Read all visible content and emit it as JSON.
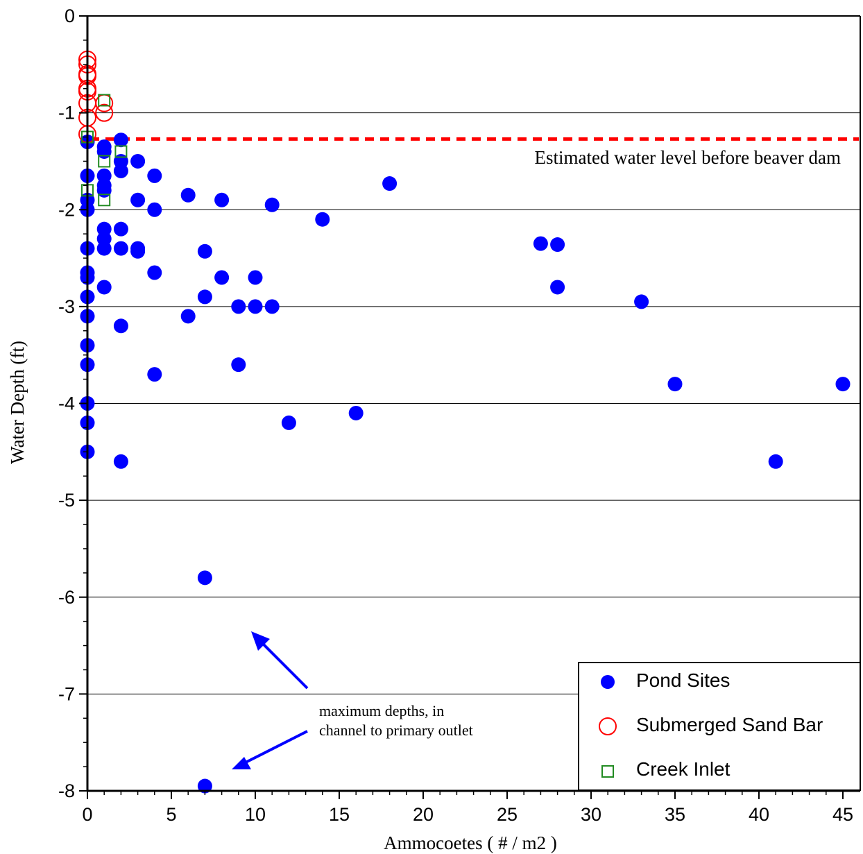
{
  "chart_data": {
    "type": "scatter",
    "xlabel": "Ammocoetes ( # / m2 )",
    "ylabel": "Water Depth (ft)",
    "xlim": [
      0,
      46
    ],
    "ylim": [
      -8,
      0
    ],
    "x_ticks": [
      "0",
      "5",
      "10",
      "15",
      "20",
      "25",
      "30",
      "35",
      "40",
      "45"
    ],
    "y_ticks": [
      "0",
      "-1",
      "-2",
      "-3",
      "-4",
      "-5",
      "-6",
      "-7",
      "-8"
    ],
    "grid": "horizontal",
    "legend_position": "bottom-right",
    "reference_line": {
      "y": -1.27,
      "label": "Estimated water level before beaver dam",
      "color": "#ff0000"
    },
    "annotation": {
      "line1": "maximum depths, in",
      "line2": "channel to primary outlet"
    },
    "series": [
      {
        "name": "Pond Sites",
        "marker": "filled-circle",
        "color": "#0000ff",
        "points": [
          [
            0,
            -1.3
          ],
          [
            0,
            -1.65
          ],
          [
            0,
            -1.9
          ],
          [
            0,
            -2.0
          ],
          [
            0,
            -2.4
          ],
          [
            0,
            -2.65
          ],
          [
            0,
            -2.7
          ],
          [
            0,
            -2.9
          ],
          [
            0,
            -3.1
          ],
          [
            0,
            -3.4
          ],
          [
            0,
            -3.6
          ],
          [
            0,
            -4.0
          ],
          [
            0,
            -4.2
          ],
          [
            0,
            -4.5
          ],
          [
            1,
            -1.35
          ],
          [
            1,
            -1.4
          ],
          [
            1,
            -1.65
          ],
          [
            1,
            -1.75
          ],
          [
            1,
            -1.8
          ],
          [
            1,
            -2.2
          ],
          [
            1,
            -2.3
          ],
          [
            1,
            -2.4
          ],
          [
            1,
            -2.8
          ],
          [
            2,
            -1.28
          ],
          [
            2,
            -1.5
          ],
          [
            2,
            -1.6
          ],
          [
            2,
            -2.2
          ],
          [
            2,
            -2.4
          ],
          [
            2,
            -3.2
          ],
          [
            2,
            -4.6
          ],
          [
            3,
            -1.5
          ],
          [
            3,
            -1.9
          ],
          [
            3,
            -2.4
          ],
          [
            3,
            -2.43
          ],
          [
            4,
            -1.65
          ],
          [
            4,
            -2.0
          ],
          [
            4,
            -2.65
          ],
          [
            4,
            -3.7
          ],
          [
            6,
            -1.85
          ],
          [
            6,
            -3.1
          ],
          [
            7,
            -2.43
          ],
          [
            7,
            -2.9
          ],
          [
            7,
            -5.8
          ],
          [
            7,
            -7.95
          ],
          [
            8,
            -1.9
          ],
          [
            8,
            -2.7
          ],
          [
            9,
            -3.0
          ],
          [
            9,
            -3.6
          ],
          [
            10,
            -2.7
          ],
          [
            10,
            -3.0
          ],
          [
            11,
            -1.95
          ],
          [
            11,
            -3.0
          ],
          [
            12,
            -4.2
          ],
          [
            14,
            -2.1
          ],
          [
            16,
            -4.1
          ],
          [
            18,
            -1.73
          ],
          [
            27,
            -2.35
          ],
          [
            28,
            -2.36
          ],
          [
            28,
            -2.8
          ],
          [
            33,
            -2.95
          ],
          [
            35,
            -3.8
          ],
          [
            41,
            -4.6
          ],
          [
            45,
            -3.8
          ]
        ]
      },
      {
        "name": "Submerged Sand Bar",
        "marker": "open-circle",
        "color": "#ff0000",
        "points": [
          [
            0,
            -0.45
          ],
          [
            0,
            -0.5
          ],
          [
            0,
            -0.6
          ],
          [
            0,
            -0.62
          ],
          [
            0,
            -0.75
          ],
          [
            0,
            -0.78
          ],
          [
            0,
            -0.9
          ],
          [
            0,
            -1.05
          ],
          [
            0,
            -1.22
          ],
          [
            1,
            -0.9
          ],
          [
            1,
            -1.0
          ]
        ]
      },
      {
        "name": "Creek Inlet",
        "marker": "open-square",
        "color": "#228b22",
        "points": [
          [
            0,
            -1.25
          ],
          [
            0,
            -1.8
          ],
          [
            1,
            -0.87
          ],
          [
            1,
            -1.5
          ],
          [
            1,
            -1.9
          ],
          [
            2,
            -1.4
          ]
        ]
      }
    ]
  }
}
